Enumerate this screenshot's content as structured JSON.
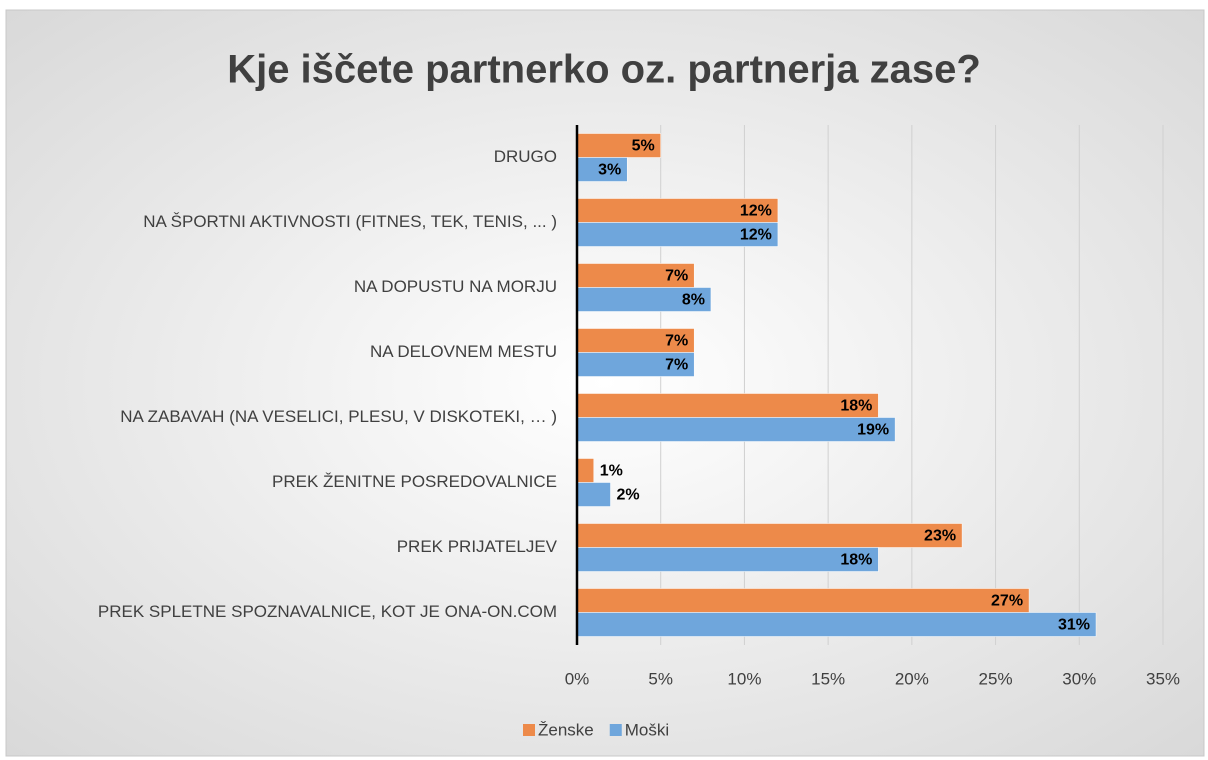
{
  "chart_data": {
    "type": "hbar",
    "title": "Kje iščete partnerko oz. partnerja zase?",
    "categories": [
      "DRUGO",
      "NA ŠPORTNI AKTIVNOSTI (FITNES, TEK, TENIS, ... )",
      "NA DOPUSTU NA MORJU",
      "NA DELOVNEM MESTU",
      "NA ZABAVAH (NA VESELICI, PLESU, V DISKOTEKI, … )",
      "PREK ŽENITNE POSREDOVALNICE",
      "PREK PRIJATELJEV",
      "PREK SPLETNE SPOZNAVALNICE, KOT JE ONA-ON.COM"
    ],
    "series": [
      {
        "name": "Ženske",
        "color": "#ed8a4a",
        "values": [
          5,
          12,
          7,
          7,
          18,
          1,
          23,
          27
        ],
        "value_labels": [
          "5%",
          "12%",
          "7%",
          "7%",
          "18%",
          "1%",
          "23%",
          "27%"
        ]
      },
      {
        "name": "Moški",
        "color": "#6fa6dc",
        "values": [
          3,
          12,
          8,
          7,
          19,
          2,
          18,
          31
        ],
        "value_labels": [
          "3%",
          "12%",
          "8%",
          "7%",
          "19%",
          "2%",
          "18%",
          "31%"
        ]
      }
    ],
    "xlim": [
      0,
      35
    ],
    "xticks": [
      {
        "value": 0,
        "label": "0%"
      },
      {
        "value": 5,
        "label": "5%"
      },
      {
        "value": 10,
        "label": "10%"
      },
      {
        "value": 15,
        "label": "15%"
      },
      {
        "value": 20,
        "label": "20%"
      },
      {
        "value": 25,
        "label": "25%"
      },
      {
        "value": 30,
        "label": "30%"
      },
      {
        "value": 35,
        "label": "35%"
      }
    ],
    "grid": true,
    "legend": "bottom"
  }
}
